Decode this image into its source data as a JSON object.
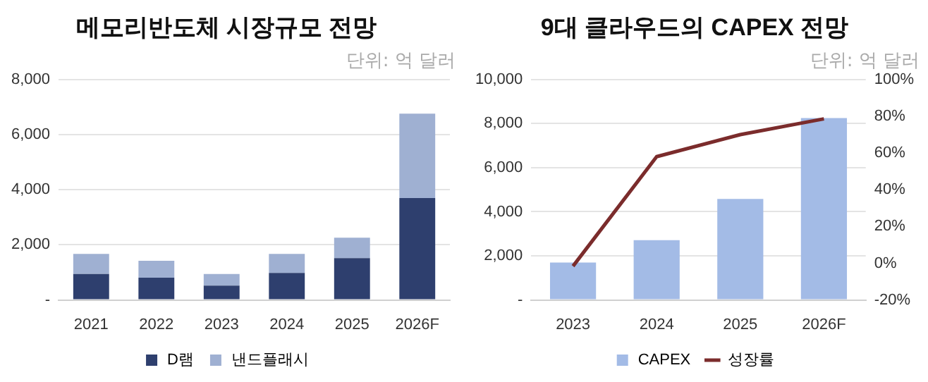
{
  "chart_data": [
    {
      "type": "bar",
      "title": "메모리반도체 시장규모 전망",
      "annotations": [
        "단위: 억 달러"
      ],
      "categories": [
        "2021",
        "2022",
        "2023",
        "2024",
        "2025",
        "2026F"
      ],
      "stacked": true,
      "series": [
        {
          "name": "D램",
          "color": "#2e3f6e",
          "values": [
            940,
            810,
            520,
            980,
            1520,
            3700
          ]
        },
        {
          "name": "낸드플래시",
          "color": "#9fb0d2",
          "values": [
            730,
            610,
            420,
            690,
            740,
            3060
          ]
        }
      ],
      "ylim": [
        0,
        8000
      ],
      "yticks": [
        {
          "value": 0,
          "label": "-"
        },
        {
          "value": 2000,
          "label": "2,000"
        },
        {
          "value": 4000,
          "label": "4,000"
        },
        {
          "value": 6000,
          "label": "6,000"
        },
        {
          "value": 8000,
          "label": "8,000"
        }
      ],
      "grid": "y",
      "legend": "bottom"
    },
    {
      "type": "bar",
      "title": "9대 클라우드의 CAPEX 전망",
      "annotations": [
        "단위: 억 달러"
      ],
      "categories": [
        "2023",
        "2024",
        "2025",
        "2026F"
      ],
      "series": [
        {
          "name": "CAPEX",
          "color": "#a3bbe6",
          "values": [
            1700,
            2710,
            4580,
            8250
          ]
        },
        {
          "name": "성장률",
          "type": "line",
          "axis": "y2",
          "color": "#7b2c2c",
          "values": [
            -1.6,
            58,
            70,
            78.6
          ]
        }
      ],
      "ylim": [
        0,
        10000
      ],
      "yticks": [
        {
          "value": 0,
          "label": "-"
        },
        {
          "value": 2000,
          "label": "2,000"
        },
        {
          "value": 4000,
          "label": "4,000"
        },
        {
          "value": 6000,
          "label": "6,000"
        },
        {
          "value": 8000,
          "label": "8,000"
        },
        {
          "value": 10000,
          "label": "10,000"
        }
      ],
      "y2lim": [
        -20,
        100
      ],
      "y2ticks": [
        {
          "value": -20,
          "label": "-20%"
        },
        {
          "value": 0,
          "label": "0%"
        },
        {
          "value": 20,
          "label": "20%"
        },
        {
          "value": 40,
          "label": "40%"
        },
        {
          "value": 60,
          "label": "60%"
        },
        {
          "value": 80,
          "label": "80%"
        },
        {
          "value": 100,
          "label": "100%"
        }
      ],
      "grid": "y",
      "legend": "bottom",
      "marker": "none"
    }
  ]
}
